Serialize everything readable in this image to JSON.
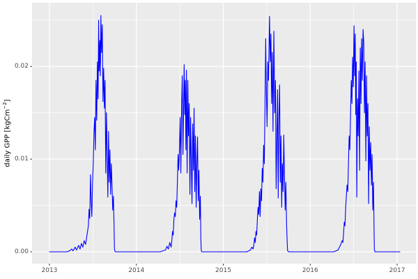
{
  "figure": {
    "background_color": "#FFFFFF",
    "panel_background_color": "#EBEBEB",
    "gridline_color": "#FFFFFF",
    "tick_mark_color": "#333333",
    "tick_label_color": "#4D4D4D",
    "axis_title_color": "#000000"
  },
  "y_axis_title": {
    "prefix": "daily GPP [kgCm",
    "superscript": "−2",
    "suffix": "]"
  },
  "chart_data": {
    "type": "line",
    "title": "",
    "xlabel": "",
    "ylabel": "daily GPP [kgCm^-2]",
    "legend": "none",
    "grid": true,
    "line_color": "#0000FF",
    "xlim": [
      2012.8,
      2017.216
    ],
    "ylim": [
      -0.00128,
      0.02687
    ],
    "x_ticks": [
      2013,
      2014,
      2015,
      2016,
      2017
    ],
    "x_tick_labels": [
      "2013",
      "2014",
      "2015",
      "2016",
      "2017"
    ],
    "x_minor_ticks": [
      2013.5,
      2014.5,
      2015.5,
      2016.5
    ],
    "y_ticks": [
      0.0,
      0.01,
      0.02
    ],
    "y_tick_labels": [
      "0.00",
      "0.01",
      "0.02"
    ],
    "y_minor_ticks": [
      0.005,
      0.015,
      0.025
    ],
    "series": [
      {
        "name": "daily GPP",
        "color": "#0000FF",
        "points": [
          [
            2013.0,
            0
          ],
          [
            2013.1,
            0
          ],
          [
            2013.2,
            0
          ],
          [
            2013.232,
            0.0001
          ],
          [
            2013.256,
            0.0003
          ],
          [
            2013.272,
            0.0001
          ],
          [
            2013.296,
            0.0005
          ],
          [
            2013.312,
            0.0002
          ],
          [
            2013.336,
            0.0007
          ],
          [
            2013.352,
            0.0003
          ],
          [
            2013.368,
            0.0009
          ],
          [
            2013.384,
            0.0005
          ],
          [
            2013.4,
            0.0012
          ],
          [
            2013.416,
            0.0008
          ],
          [
            2013.432,
            0.0018
          ],
          [
            2013.448,
            0.0028
          ],
          [
            2013.456,
            0.0046
          ],
          [
            2013.464,
            0.0036
          ],
          [
            2013.472,
            0.0083
          ],
          [
            2013.48,
            0.0055
          ],
          [
            2013.488,
            0.0038
          ],
          [
            2013.496,
            0.0075
          ],
          [
            2013.504,
            0.0095
          ],
          [
            2013.512,
            0.0128
          ],
          [
            2013.52,
            0.0145
          ],
          [
            2013.528,
            0.011
          ],
          [
            2013.536,
            0.0185
          ],
          [
            2013.544,
            0.0142
          ],
          [
            2013.552,
            0.0205
          ],
          [
            2013.56,
            0.0165
          ],
          [
            2013.566,
            0.025
          ],
          [
            2013.572,
            0.0195
          ],
          [
            2013.58,
            0.0228
          ],
          [
            2013.586,
            0.019
          ],
          [
            2013.592,
            0.0255
          ],
          [
            2013.6,
            0.0215
          ],
          [
            2013.608,
            0.0245
          ],
          [
            2013.616,
            0.0162
          ],
          [
            2013.624,
            0.0198
          ],
          [
            2013.632,
            0.0155
          ],
          [
            2013.64,
            0.0185
          ],
          [
            2013.648,
            0.0085
          ],
          [
            2013.656,
            0.015
          ],
          [
            2013.664,
            0.0105
          ],
          [
            2013.672,
            0.0059
          ],
          [
            2013.68,
            0.013
          ],
          [
            2013.688,
            0.0075
          ],
          [
            2013.696,
            0.011
          ],
          [
            2013.704,
            0.0062
          ],
          [
            2013.712,
            0.0095
          ],
          [
            2013.72,
            0.0072
          ],
          [
            2013.728,
            0.0045
          ],
          [
            2013.736,
            0.006
          ],
          [
            2013.744,
            0.0025
          ],
          [
            2013.748,
            0.0004
          ],
          [
            2013.752,
            0.0001
          ],
          [
            2013.76,
            0
          ],
          [
            2013.872,
            0
          ],
          [
            2013.992,
            0
          ],
          [
            2014.0,
            0
          ],
          [
            2014.1,
            0
          ],
          [
            2014.2,
            0
          ],
          [
            2014.272,
            0
          ],
          [
            2014.336,
            0.0002
          ],
          [
            2014.352,
            0.0006
          ],
          [
            2014.368,
            0.0003
          ],
          [
            2014.384,
            0.001
          ],
          [
            2014.4,
            0.0005
          ],
          [
            2014.408,
            0.0012
          ],
          [
            2014.416,
            0.0022
          ],
          [
            2014.424,
            0.0018
          ],
          [
            2014.432,
            0.0035
          ],
          [
            2014.44,
            0.0042
          ],
          [
            2014.448,
            0.0038
          ],
          [
            2014.456,
            0.0055
          ],
          [
            2014.464,
            0.0048
          ],
          [
            2014.472,
            0.0075
          ],
          [
            2014.48,
            0.0105
          ],
          [
            2014.488,
            0.0088
          ],
          [
            2014.496,
            0.0112
          ],
          [
            2014.504,
            0.0145
          ],
          [
            2014.512,
            0.0085
          ],
          [
            2014.52,
            0.0155
          ],
          [
            2014.528,
            0.019
          ],
          [
            2014.536,
            0.0105
          ],
          [
            2014.544,
            0.016
          ],
          [
            2014.55,
            0.0202
          ],
          [
            2014.557,
            0.0148
          ],
          [
            2014.563,
            0.0185
          ],
          [
            2014.57,
            0.011
          ],
          [
            2014.576,
            0.0196
          ],
          [
            2014.584,
            0.0085
          ],
          [
            2014.592,
            0.0185
          ],
          [
            2014.6,
            0.0125
          ],
          [
            2014.608,
            0.016
          ],
          [
            2014.616,
            0.0062
          ],
          [
            2014.624,
            0.0145
          ],
          [
            2014.632,
            0.0098
          ],
          [
            2014.64,
            0.0052
          ],
          [
            2014.648,
            0.0138
          ],
          [
            2014.656,
            0.0088
          ],
          [
            2014.664,
            0.0155
          ],
          [
            2014.672,
            0.0065
          ],
          [
            2014.68,
            0.0125
          ],
          [
            2014.688,
            0.0048
          ],
          [
            2014.696,
            0.0095
          ],
          [
            2014.704,
            0.0124
          ],
          [
            2014.712,
            0.0055
          ],
          [
            2014.72,
            0.0088
          ],
          [
            2014.728,
            0.0035
          ],
          [
            2014.736,
            0.006
          ],
          [
            2014.742,
            0.0015
          ],
          [
            2014.746,
            0.0002
          ],
          [
            2014.752,
            0
          ],
          [
            2014.912,
            0
          ],
          [
            2014.992,
            0
          ],
          [
            2015.0,
            0
          ],
          [
            2015.1,
            0
          ],
          [
            2015.2,
            0
          ],
          [
            2015.272,
            0
          ],
          [
            2015.312,
            0.0002
          ],
          [
            2015.328,
            0.0005
          ],
          [
            2015.344,
            0.0003
          ],
          [
            2015.352,
            0.0008
          ],
          [
            2015.36,
            0.0015
          ],
          [
            2015.368,
            0.001
          ],
          [
            2015.376,
            0.0022
          ],
          [
            2015.384,
            0.0018
          ],
          [
            2015.392,
            0.0035
          ],
          [
            2015.4,
            0.0048
          ],
          [
            2015.408,
            0.004
          ],
          [
            2015.416,
            0.0065
          ],
          [
            2015.424,
            0.0038
          ],
          [
            2015.432,
            0.0068
          ],
          [
            2015.44,
            0.0055
          ],
          [
            2015.448,
            0.009
          ],
          [
            2015.456,
            0.0075
          ],
          [
            2015.464,
            0.0115
          ],
          [
            2015.472,
            0.0095
          ],
          [
            2015.48,
            0.0158
          ],
          [
            2015.488,
            0.023
          ],
          [
            2015.496,
            0.017
          ],
          [
            2015.504,
            0.0135
          ],
          [
            2015.512,
            0.0205
          ],
          [
            2015.52,
            0.0185
          ],
          [
            2015.532,
            0.0254
          ],
          [
            2015.54,
            0.0205
          ],
          [
            2015.548,
            0.0235
          ],
          [
            2015.556,
            0.016
          ],
          [
            2015.564,
            0.0215
          ],
          [
            2015.572,
            0.013
          ],
          [
            2015.582,
            0.0238
          ],
          [
            2015.592,
            0.015
          ],
          [
            2015.6,
            0.0185
          ],
          [
            2015.608,
            0.0068
          ],
          [
            2015.616,
            0.012
          ],
          [
            2015.624,
            0.0175
          ],
          [
            2015.632,
            0.0058
          ],
          [
            2015.64,
            0.0145
          ],
          [
            2015.648,
            0.018
          ],
          [
            2015.656,
            0.0075
          ],
          [
            2015.664,
            0.0125
          ],
          [
            2015.672,
            0.0048
          ],
          [
            2015.68,
            0.0095
          ],
          [
            2015.688,
            0.0065
          ],
          [
            2015.696,
            0.0126
          ],
          [
            2015.704,
            0.0082
          ],
          [
            2015.712,
            0.0045
          ],
          [
            2015.72,
            0.0075
          ],
          [
            2015.728,
            0.003
          ],
          [
            2015.736,
            0.0008
          ],
          [
            2015.74,
            0.0001
          ],
          [
            2015.752,
            0
          ],
          [
            2015.872,
            0
          ],
          [
            2015.992,
            0
          ],
          [
            2016.0,
            0
          ],
          [
            2016.1,
            0
          ],
          [
            2016.2,
            0
          ],
          [
            2016.272,
            0
          ],
          [
            2016.32,
            0.0002
          ],
          [
            2016.336,
            0.0005
          ],
          [
            2016.352,
            0.0008
          ],
          [
            2016.368,
            0.0012
          ],
          [
            2016.376,
            0.001
          ],
          [
            2016.384,
            0.002
          ],
          [
            2016.392,
            0.0032
          ],
          [
            2016.4,
            0.0028
          ],
          [
            2016.408,
            0.0048
          ],
          [
            2016.416,
            0.006
          ],
          [
            2016.424,
            0.0072
          ],
          [
            2016.432,
            0.0065
          ],
          [
            2016.44,
            0.0095
          ],
          [
            2016.448,
            0.0125
          ],
          [
            2016.456,
            0.011
          ],
          [
            2016.464,
            0.0148
          ],
          [
            2016.472,
            0.0185
          ],
          [
            2016.48,
            0.016
          ],
          [
            2016.488,
            0.021
          ],
          [
            2016.496,
            0.0178
          ],
          [
            2016.504,
            0.0244
          ],
          [
            2016.512,
            0.019
          ],
          [
            2016.518,
            0.0235
          ],
          [
            2016.524,
            0.0148
          ],
          [
            2016.53,
            0.0205
          ],
          [
            2016.536,
            0.0059
          ],
          [
            2016.544,
            0.0165
          ],
          [
            2016.552,
            0.0125
          ],
          [
            2016.56,
            0.0195
          ],
          [
            2016.568,
            0.0088
          ],
          [
            2016.576,
            0.022
          ],
          [
            2016.584,
            0.016
          ],
          [
            2016.592,
            0.023
          ],
          [
            2016.6,
            0.0185
          ],
          [
            2016.608,
            0.024
          ],
          [
            2016.616,
            0.0226
          ],
          [
            2016.624,
            0.015
          ],
          [
            2016.632,
            0.0205
          ],
          [
            2016.64,
            0.0098
          ],
          [
            2016.648,
            0.019
          ],
          [
            2016.656,
            0.0125
          ],
          [
            2016.664,
            0.016
          ],
          [
            2016.672,
            0.0052
          ],
          [
            2016.68,
            0.0135
          ],
          [
            2016.688,
            0.0088
          ],
          [
            2016.696,
            0.0118
          ],
          [
            2016.704,
            0.0072
          ],
          [
            2016.712,
            0.0105
          ],
          [
            2016.72,
            0.0045
          ],
          [
            2016.728,
            0.0075
          ],
          [
            2016.734,
            0.0028
          ],
          [
            2016.738,
            0.0003
          ],
          [
            2016.744,
            0
          ],
          [
            2016.912,
            0
          ],
          [
            2017.0,
            0
          ],
          [
            2017.032,
            0
          ]
        ]
      }
    ]
  }
}
